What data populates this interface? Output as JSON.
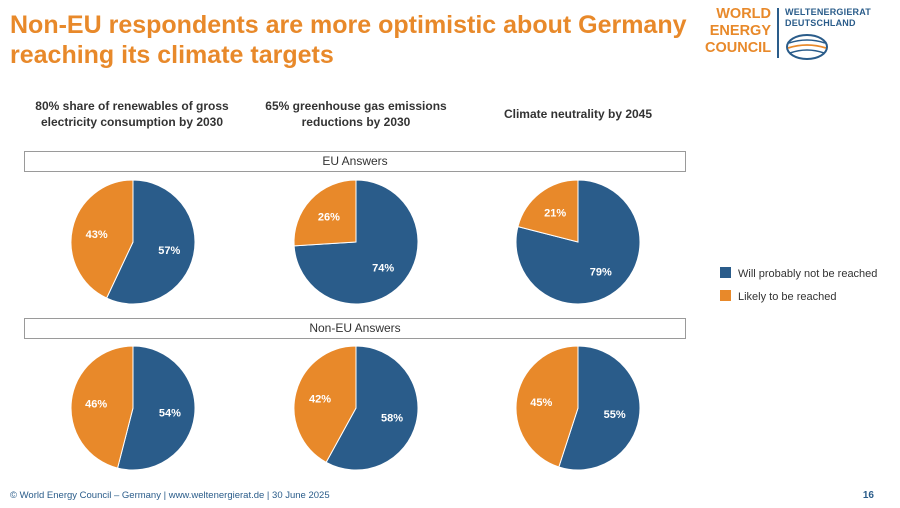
{
  "title": "Non-EU respondents are more optimistic about Germany reaching its climate targets",
  "logo": {
    "left_lines": [
      "WORLD",
      "ENERGY",
      "COUNCIL"
    ],
    "right_lines": [
      "WELTENERGIERAT",
      "DEUTSCHLAND"
    ]
  },
  "colors": {
    "blue": "#2a5c8a",
    "orange": "#e8892a",
    "title": "#e8892a"
  },
  "column_headers": [
    "80% share of renewables of gross electricity consumption by 2030",
    "65% greenhouse gas emissions reductions by 2030",
    "Climate neutrality by 2045"
  ],
  "legend": [
    {
      "label": "Will probably not be reached",
      "color": "#2a5c8a"
    },
    {
      "label": "Likely to be reached",
      "color": "#e8892a"
    }
  ],
  "chart_data": [
    {
      "type": "pie",
      "group": "EU Answers",
      "charts": [
        {
          "category": "80% share of renewables of gross electricity consumption by 2030",
          "slices": [
            {
              "label": "Will probably not be reached",
              "value": 57
            },
            {
              "label": "Likely to be reached",
              "value": 43
            }
          ]
        },
        {
          "category": "65% greenhouse gas emissions reductions by 2030",
          "slices": [
            {
              "label": "Will probably not be reached",
              "value": 74
            },
            {
              "label": "Likely to be reached",
              "value": 26
            }
          ]
        },
        {
          "category": "Climate neutrality by 2045",
          "slices": [
            {
              "label": "Will probably not be reached",
              "value": 79
            },
            {
              "label": "Likely to be reached",
              "value": 21
            }
          ]
        }
      ]
    },
    {
      "type": "pie",
      "group": "Non-EU Answers",
      "charts": [
        {
          "category": "80% share of renewables of gross electricity consumption by 2030",
          "slices": [
            {
              "label": "Will probably not be reached",
              "value": 54
            },
            {
              "label": "Likely to be reached",
              "value": 46
            }
          ]
        },
        {
          "category": "65% greenhouse gas emissions reductions by 2030",
          "slices": [
            {
              "label": "Will probably not be reached",
              "value": 58
            },
            {
              "label": "Likely to be reached",
              "value": 42
            }
          ]
        },
        {
          "category": "Climate neutrality by 2045",
          "slices": [
            {
              "label": "Will probably not be reached",
              "value": 55
            },
            {
              "label": "Likely to be reached",
              "value": 45
            }
          ]
        }
      ]
    }
  ],
  "footer": "© World Energy Council – Germany  |  www.weltenergierat.de  | 30 June 2025",
  "page_number": "16"
}
